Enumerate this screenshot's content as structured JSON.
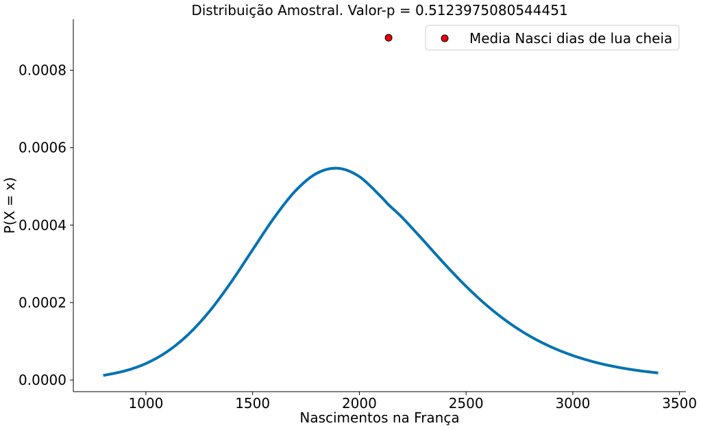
{
  "chart_data": {
    "type": "line",
    "title": "Distribuição Amostral. Valor-p = 0.5123975080544451",
    "xlabel": "Nascimentos na França",
    "ylabel": "P(X = x)",
    "xlim": [
      660,
      3530
    ],
    "ylim": [
      -3e-05,
      0.000932
    ],
    "xticks": [
      1000,
      1500,
      2000,
      2500,
      3000,
      3500
    ],
    "xtick_labels": [
      "1000",
      "1500",
      "2000",
      "2500",
      "3000",
      "3500"
    ],
    "yticks": [
      0,
      0.0002,
      0.0004,
      0.0006,
      0.0008
    ],
    "ytick_labels": [
      "0.0000",
      "0.0002",
      "0.0004",
      "0.0006",
      "0.0008"
    ],
    "grid": false,
    "legend_position": "top-right",
    "series": [
      {
        "kind": "line",
        "color": "#0072b2",
        "x": [
          800,
          900,
          1000,
          1100,
          1200,
          1300,
          1400,
          1500,
          1600,
          1700,
          1800,
          1900,
          2000,
          2100,
          2137,
          2200,
          2300,
          2400,
          2500,
          2600,
          2700,
          2800,
          2900,
          3000,
          3100,
          3200,
          3300,
          3400
        ],
        "y": [
          1.19e-05,
          2.33e-05,
          4.27e-05,
          7.35e-05,
          0.0001184,
          0.0001789,
          0.0002534,
          0.0003364,
          0.0004186,
          0.0004883,
          0.0005338,
          0.0005469,
          0.0005255,
          0.0004744,
          0.0004527,
          0.0004203,
          0.0003606,
          0.0002994,
          0.0002421,
          0.0001912,
          0.0001482,
          0.000113,
          8.5e-05,
          6.33e-05,
          4.67e-05,
          3.42e-05,
          2.5e-05,
          1.82e-05
        ]
      }
    ],
    "points": [
      {
        "name": "Media Nasci dias de lua cheia",
        "x": 2137,
        "y": 0.000884,
        "color": "#e8000b"
      }
    ]
  }
}
